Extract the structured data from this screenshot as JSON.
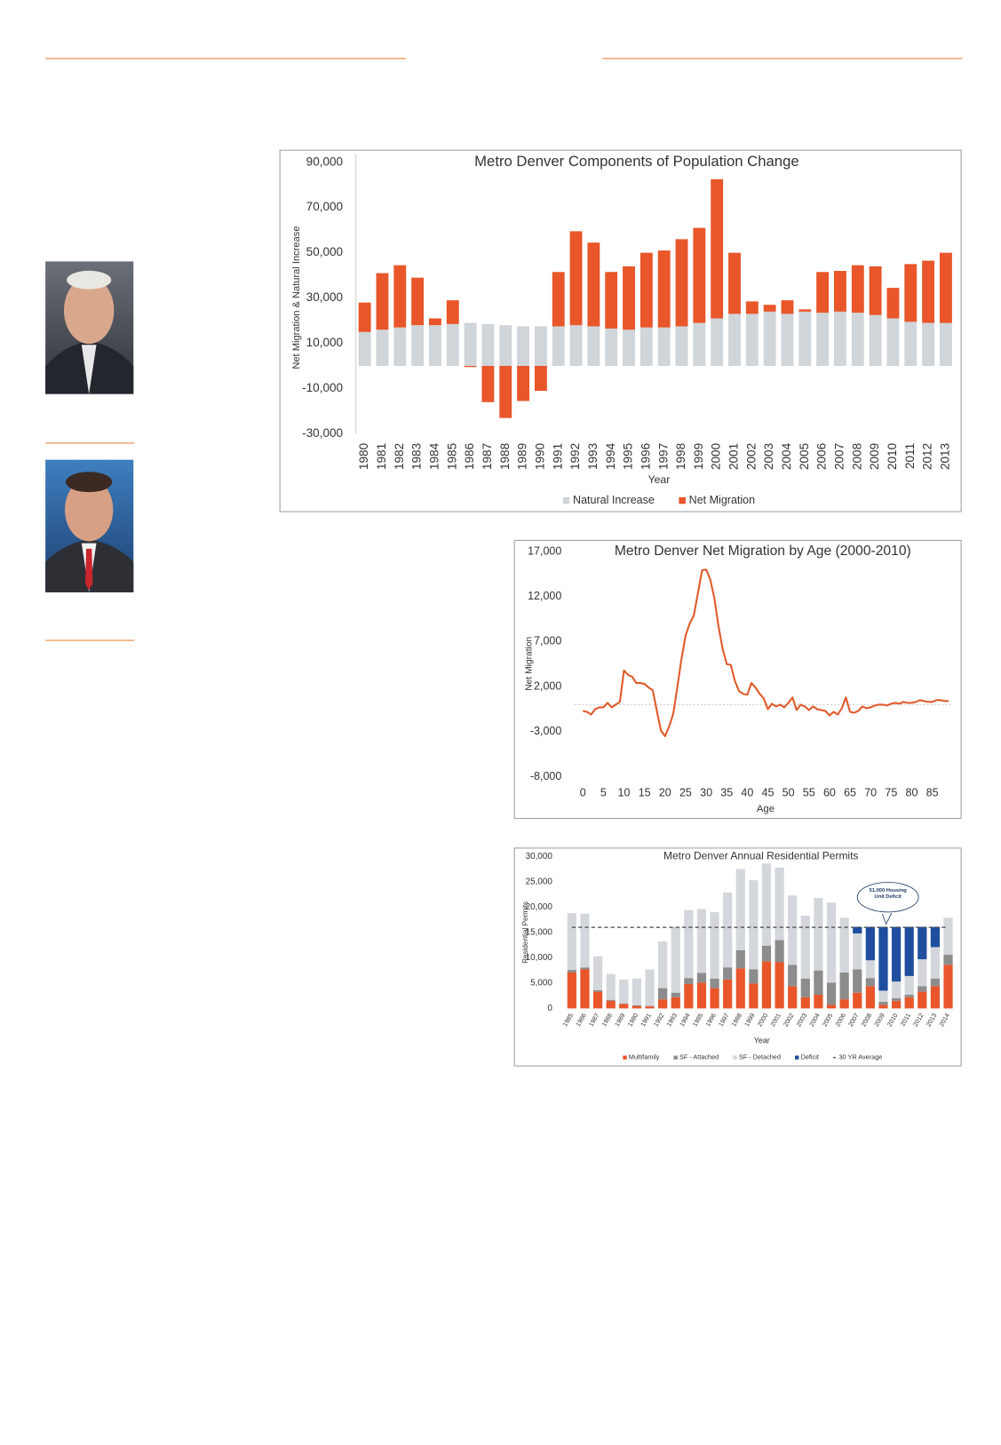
{
  "chart_data": [
    {
      "type": "bar",
      "stacked": true,
      "title": "Metro Denver Components of Population Change",
      "x_label": "Year",
      "y_label": "Net Migration & Natural Increase",
      "categories": [
        "1980",
        "1981",
        "1982",
        "1983",
        "1984",
        "1985",
        "1986",
        "1987",
        "1988",
        "1989",
        "1990",
        "1991",
        "1992",
        "1993",
        "1994",
        "1995",
        "1996",
        "1997",
        "1998",
        "1999",
        "2000",
        "2001",
        "2002",
        "2003",
        "2004",
        "2005",
        "2006",
        "2007",
        "2008",
        "2009",
        "2010",
        "2011",
        "2012",
        "2013"
      ],
      "series": [
        {
          "name": "Natural Increase",
          "color": "#d0d5da",
          "values": [
            15000,
            16000,
            17000,
            18000,
            18000,
            18500,
            19000,
            18500,
            18000,
            17500,
            17500,
            17500,
            18000,
            17500,
            16500,
            16000,
            17000,
            17000,
            17500,
            19000,
            21000,
            23000,
            23000,
            24000,
            23000,
            24000,
            23500,
            24000,
            23500,
            22500,
            21000,
            19500,
            19000,
            19000
          ]
        },
        {
          "name": "Net Migration",
          "color": "#e8562a",
          "values": [
            13000,
            25000,
            27500,
            21000,
            3000,
            10500,
            -500,
            -16000,
            -23000,
            -15500,
            -11000,
            24000,
            41500,
            37000,
            25000,
            28000,
            33000,
            34000,
            38500,
            42000,
            61500,
            27000,
            5500,
            3000,
            6000,
            1000,
            18000,
            18000,
            21000,
            21500,
            13500,
            25500,
            27500,
            31000
          ]
        }
      ],
      "ylim": [
        -30000,
        90000
      ],
      "yticks": [
        {
          "value": -30000,
          "label": "-30,000"
        },
        {
          "value": -10000,
          "label": "-10,000"
        },
        {
          "value": 10000,
          "label": "10,000"
        },
        {
          "value": 30000,
          "label": "30,000"
        },
        {
          "value": 50000,
          "label": "50,000"
        },
        {
          "value": 70000,
          "label": "70,000"
        },
        {
          "value": 90000,
          "label": "90,000"
        }
      ],
      "grid": false,
      "legend": "bottom"
    },
    {
      "type": "line",
      "title": "Metro Denver Net Migration by Age (2000-2010)",
      "x_label": "Age",
      "y_label": "Net Migration",
      "x": [
        0,
        1,
        2,
        3,
        4,
        5,
        6,
        7,
        8,
        9,
        10,
        11,
        12,
        13,
        14,
        15,
        16,
        17,
        18,
        19,
        20,
        21,
        22,
        23,
        24,
        25,
        26,
        27,
        28,
        29,
        30,
        31,
        32,
        33,
        34,
        35,
        36,
        37,
        38,
        39,
        40,
        41,
        42,
        43,
        44,
        45,
        46,
        47,
        48,
        49,
        50,
        51,
        52,
        53,
        54,
        55,
        56,
        57,
        58,
        59,
        60,
        61,
        62,
        63,
        64,
        65,
        66,
        67,
        68,
        69,
        70,
        71,
        72,
        73,
        74,
        75,
        76,
        77,
        78,
        79,
        80,
        81,
        82,
        83,
        84,
        85,
        86,
        87,
        88,
        89
      ],
      "values": [
        -700,
        -800,
        -1100,
        -500,
        -300,
        -300,
        200,
        -300,
        0,
        300,
        3800,
        3300,
        3100,
        2400,
        2400,
        2300,
        1900,
        1600,
        -700,
        -2900,
        -3500,
        -2400,
        -1000,
        2000,
        5100,
        7700,
        9000,
        9900,
        12400,
        14900,
        15000,
        13900,
        11800,
        8700,
        6200,
        4500,
        4400,
        2600,
        1500,
        1200,
        1100,
        2400,
        1900,
        1200,
        700,
        -500,
        100,
        -200,
        0,
        -300,
        200,
        800,
        -600,
        0,
        -200,
        -600,
        -200,
        -500,
        -600,
        -700,
        -1200,
        -800,
        -1100,
        -400,
        800,
        -800,
        -900,
        -700,
        -200,
        -400,
        -300,
        -100,
        0,
        0,
        -100,
        100,
        200,
        100,
        300,
        200,
        200,
        300,
        500,
        400,
        300,
        300,
        500,
        500,
        400,
        400
      ],
      "color": "#e05a2b",
      "reference_line": 0,
      "xlim": [
        -2,
        90
      ],
      "xticks": [
        0,
        5,
        10,
        15,
        20,
        25,
        30,
        35,
        40,
        45,
        50,
        55,
        60,
        65,
        70,
        75,
        80,
        85
      ],
      "ylim": [
        -8000,
        17000
      ],
      "yticks": [
        {
          "value": -8000,
          "label": "-8,000"
        },
        {
          "value": -3000,
          "label": "-3,000"
        },
        {
          "value": 2000,
          "label": "2,000"
        },
        {
          "value": 7000,
          "label": "7,000"
        },
        {
          "value": 12000,
          "label": "12,000"
        },
        {
          "value": 17000,
          "label": "17,000"
        }
      ],
      "grid": false
    },
    {
      "type": "bar",
      "stacked": true,
      "title": "Metro Denver Annual Residential Permits",
      "x_label": "Year",
      "y_label": "Residential Permits",
      "categories": [
        "1985",
        "1986",
        "1987",
        "1988",
        "1989",
        "1990",
        "1991",
        "1992",
        "1993",
        "1994",
        "1995",
        "1996",
        "1997",
        "1998",
        "1999",
        "2000",
        "2001",
        "2002",
        "2003",
        "2004",
        "2005",
        "2006",
        "2007",
        "2008",
        "2009",
        "2010",
        "2011",
        "2012",
        "2013",
        "2014"
      ],
      "series": [
        {
          "name": "Multifamily",
          "color": "#e8562a",
          "values": [
            7100,
            7700,
            3300,
            1500,
            900,
            500,
            400,
            1800,
            2200,
            4800,
            5100,
            4000,
            5700,
            7900,
            4900,
            9300,
            9100,
            4400,
            2200,
            2700,
            700,
            1800,
            3100,
            4400,
            700,
            1500,
            2200,
            3300,
            4400,
            8600
          ]
        },
        {
          "name": "SF - Attached",
          "color": "#8c8c8c",
          "values": [
            500,
            400,
            300,
            200,
            100,
            100,
            100,
            2200,
            900,
            1200,
            1900,
            1900,
            2400,
            3600,
            2800,
            3100,
            4400,
            4200,
            3700,
            4800,
            4400,
            5300,
            4600,
            1600,
            600,
            500,
            500,
            1100,
            1500,
            2000
          ]
        },
        {
          "name": "SF - Detached",
          "color": "#d3d7db",
          "values": [
            11200,
            10600,
            6700,
            5100,
            4700,
            5300,
            7200,
            9200,
            13000,
            13400,
            12600,
            13100,
            14800,
            16000,
            17600,
            16200,
            14300,
            13700,
            12400,
            14300,
            15800,
            10800,
            7100,
            3500,
            2200,
            3300,
            3700,
            5300,
            6200,
            7300
          ]
        },
        {
          "name": "Deficit",
          "color": "#1f4e9e",
          "values": [
            0,
            0,
            0,
            0,
            0,
            0,
            0,
            0,
            0,
            0,
            0,
            0,
            0,
            0,
            0,
            0,
            0,
            0,
            0,
            0,
            0,
            0,
            1300,
            6600,
            12600,
            10800,
            9700,
            6400,
            4000,
            0
          ]
        }
      ],
      "average": {
        "name": "30 YR Average",
        "value": 16000
      },
      "annotations": [
        "51,000 Housing Unit Deficit"
      ],
      "ylim": [
        0,
        30000
      ],
      "yticks": [
        0,
        {
          "value": 5000,
          "label": "5,000"
        },
        {
          "value": 10000,
          "label": "10,000"
        },
        {
          "value": 15000,
          "label": "15,000"
        },
        {
          "value": 20000,
          "label": "20,000"
        },
        {
          "value": 25000,
          "label": "25,000"
        },
        {
          "value": 30000,
          "label": "30,000"
        }
      ],
      "grid": false,
      "legend": "bottom"
    }
  ]
}
